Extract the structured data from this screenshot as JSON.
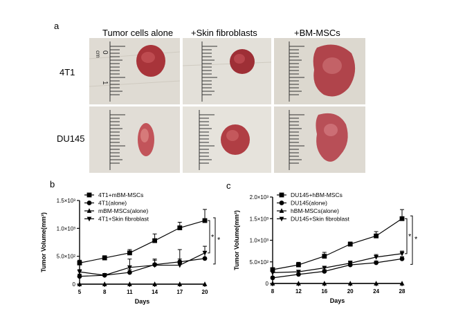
{
  "figure": {
    "panel_a": {
      "letter": "a",
      "columns": [
        "Tumor cells alone",
        "+Skin fibroblasts",
        "+BM-MSCs"
      ],
      "rows": [
        "4T1",
        "DU145"
      ],
      "ruler_unit": "cm",
      "ruler_marks": [
        "0",
        "1"
      ]
    },
    "panel_b_letter": "b",
    "panel_c_letter": "c"
  },
  "chart_data": [
    {
      "type": "line",
      "id": "b",
      "xlabel": "Days",
      "ylabel": "Tumor Volume(mm³)",
      "x": [
        5,
        8,
        11,
        14,
        17,
        20
      ],
      "x_ticks": [
        "5",
        "8",
        "11",
        "14",
        "17",
        "20"
      ],
      "y_ticks": [
        {
          "v": 0,
          "label": "0"
        },
        {
          "v": 500,
          "label": "5.0×10²"
        },
        {
          "v": 1000,
          "label": "1.0×10³"
        },
        {
          "v": 1500,
          "label": "1.5×10³"
        }
      ],
      "xlim": [
        5,
        20
      ],
      "ylim": [
        0,
        1500
      ],
      "legend_position": "top-left",
      "series": [
        {
          "name": "4T1+mBM-MSCs",
          "marker": "square",
          "values": [
            380,
            470,
            560,
            780,
            1010,
            1140
          ],
          "err": [
            50,
            40,
            60,
            120,
            100,
            200
          ]
        },
        {
          "name": "4T1(alone)",
          "marker": "circle",
          "values": [
            140,
            160,
            210,
            350,
            400,
            460
          ],
          "err": [
            40,
            30,
            50,
            80,
            220,
            130
          ]
        },
        {
          "name": "mBM-MSCs(alone)",
          "marker": "triangle",
          "values": [
            0,
            0,
            0,
            0,
            0,
            0
          ],
          "err": [
            0,
            0,
            0,
            0,
            0,
            0
          ]
        },
        {
          "name": "4T1+Skin fibroblast",
          "marker": "triangle-down",
          "values": [
            220,
            160,
            300,
            340,
            340,
            560
          ],
          "err": [
            40,
            30,
            150,
            110,
            110,
            120
          ]
        }
      ],
      "annotations": [
        "*",
        "*"
      ]
    },
    {
      "type": "line",
      "id": "c",
      "xlabel": "Days",
      "ylabel": "Tumor Volume(mm³)",
      "x": [
        8,
        12,
        16,
        20,
        24,
        28
      ],
      "x_ticks": [
        "8",
        "12",
        "16",
        "20",
        "24",
        "28"
      ],
      "y_ticks": [
        {
          "v": 0,
          "label": "0"
        },
        {
          "v": 500,
          "label": "5.0×10²"
        },
        {
          "v": 1000,
          "label": "1.0×10³"
        },
        {
          "v": 1500,
          "label": "1.5×10³"
        },
        {
          "v": 2000,
          "label": "2.0×10³"
        }
      ],
      "xlim": [
        8,
        28
      ],
      "ylim": [
        0,
        2000
      ],
      "legend_position": "top-left",
      "series": [
        {
          "name": "DU145+hBM-MSCs",
          "marker": "square",
          "values": [
            320,
            430,
            630,
            910,
            1100,
            1500
          ],
          "err": [
            40,
            60,
            90,
            50,
            100,
            210
          ]
        },
        {
          "name": "DU145(alone)",
          "marker": "circle",
          "values": [
            130,
            210,
            280,
            430,
            480,
            570
          ],
          "err": [
            30,
            30,
            40,
            50,
            40,
            50
          ]
        },
        {
          "name": "hBM-MSCs(alone)",
          "marker": "triangle",
          "values": [
            0,
            0,
            0,
            0,
            0,
            0
          ],
          "err": [
            0,
            0,
            0,
            0,
            0,
            0
          ]
        },
        {
          "name": "DU145+Skin fibroblast",
          "marker": "triangle-down",
          "values": [
            250,
            270,
            360,
            470,
            610,
            690
          ],
          "err": [
            30,
            30,
            40,
            50,
            60,
            60
          ]
        }
      ],
      "annotations": [
        "*",
        "*"
      ]
    }
  ]
}
